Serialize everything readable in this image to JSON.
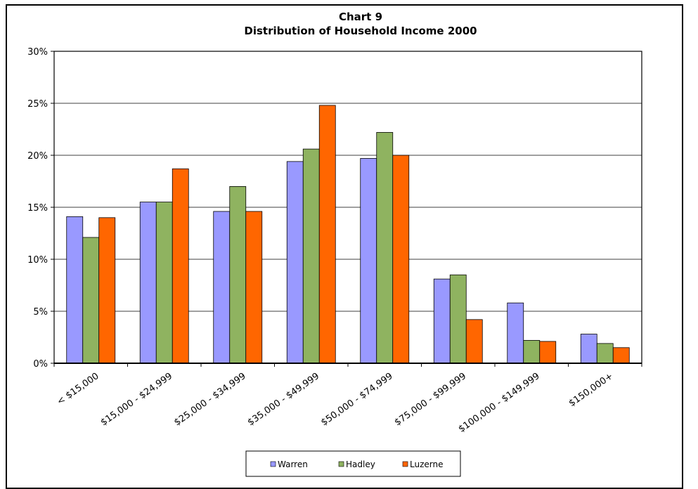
{
  "chart_data": {
    "type": "bar",
    "title": "Chart 9",
    "subtitle": "Distribution of Household Income 2000",
    "xlabel": "",
    "ylabel": "",
    "ylim": [
      0,
      30
    ],
    "yticks": [
      "0%",
      "5%",
      "10%",
      "15%",
      "20%",
      "25%",
      "30%"
    ],
    "grid": true,
    "legend_position": "bottom",
    "categories": [
      "< $15,000",
      "$15,000 - $24,999",
      "$25,000 - $34,999",
      "$35,000 - $49,999",
      "$50,000 - $74,999",
      "$75,000 - $99,999",
      "$100,000 - $149,999",
      "$150,000+"
    ],
    "series": [
      {
        "name": "Warren",
        "color": "#9999ff",
        "values": [
          14.1,
          15.5,
          14.6,
          19.4,
          19.7,
          8.1,
          5.8,
          2.8
        ]
      },
      {
        "name": "Hadley",
        "color": "#8fb360",
        "values": [
          12.1,
          15.5,
          17.0,
          20.6,
          22.2,
          8.5,
          2.2,
          1.9
        ]
      },
      {
        "name": "Luzerne",
        "color": "#ff6600",
        "values": [
          14.0,
          18.7,
          14.6,
          24.8,
          20.0,
          4.2,
          2.1,
          1.5
        ]
      }
    ]
  }
}
